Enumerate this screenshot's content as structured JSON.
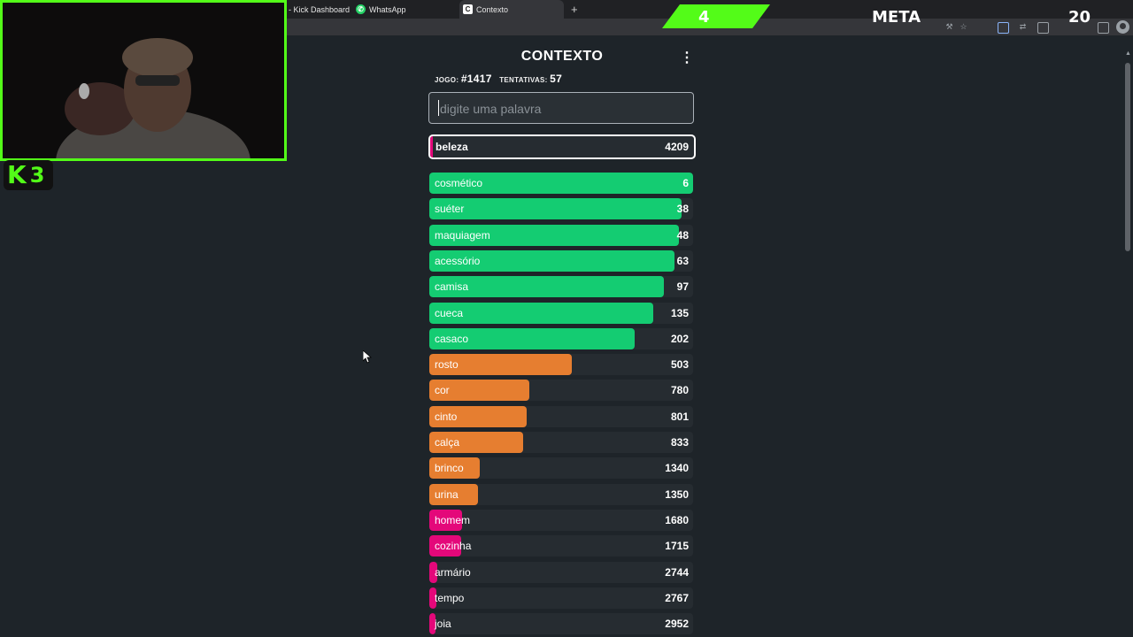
{
  "browser": {
    "tabs": [
      {
        "label": "- Kick Dashboard",
        "icon": ""
      },
      {
        "label": "WhatsApp",
        "icon": "whatsapp-icon"
      },
      {
        "label": "Contexto",
        "icon": "contexto-icon",
        "active": true
      }
    ],
    "new_tab_symbol": "+"
  },
  "overlay": {
    "kick_logo_letter": "K",
    "kick_count": "3",
    "goal_current": "4",
    "goal_label": "META",
    "goal_target": "20",
    "accent_color": "#53fc18"
  },
  "app": {
    "title": "CONTEXTO",
    "menu_symbol": "⋮",
    "game_label": "JOGO:",
    "game_number": "#1417",
    "attempts_label": "TENTATIVAS:",
    "attempts_count": "57",
    "input_placeholder": "digite uma palavra",
    "last_guess": {
      "word": "beleza",
      "rank": "4209"
    },
    "guesses": [
      {
        "word": "cosmético",
        "rank": "6",
        "fill": 1.0,
        "color": "#14cc72"
      },
      {
        "word": "suéter",
        "rank": "38",
        "fill": 0.955,
        "color": "#14cc72"
      },
      {
        "word": "maquiagem",
        "rank": "48",
        "fill": 0.945,
        "color": "#14cc72"
      },
      {
        "word": "acessório",
        "rank": "63",
        "fill": 0.93,
        "color": "#14cc72"
      },
      {
        "word": "camisa",
        "rank": "97",
        "fill": 0.89,
        "color": "#14cc72"
      },
      {
        "word": "cueca",
        "rank": "135",
        "fill": 0.85,
        "color": "#14cc72"
      },
      {
        "word": "casaco",
        "rank": "202",
        "fill": 0.78,
        "color": "#14cc72"
      },
      {
        "word": "rosto",
        "rank": "503",
        "fill": 0.54,
        "color": "#e67e30"
      },
      {
        "word": "cor",
        "rank": "780",
        "fill": 0.38,
        "color": "#e67e30"
      },
      {
        "word": "cinto",
        "rank": "801",
        "fill": 0.37,
        "color": "#e67e30"
      },
      {
        "word": "calça",
        "rank": "833",
        "fill": 0.355,
        "color": "#e67e30"
      },
      {
        "word": "brinco",
        "rank": "1340",
        "fill": 0.19,
        "color": "#e67e30"
      },
      {
        "word": "urina",
        "rank": "1350",
        "fill": 0.185,
        "color": "#e67e30"
      },
      {
        "word": "homem",
        "rank": "1680",
        "fill": 0.125,
        "color": "#e4087a"
      },
      {
        "word": "cozinha",
        "rank": "1715",
        "fill": 0.12,
        "color": "#e4087a"
      },
      {
        "word": "armário",
        "rank": "2744",
        "fill": 0.03,
        "color": "#e4087a"
      },
      {
        "word": "tempo",
        "rank": "2767",
        "fill": 0.028,
        "color": "#e4087a"
      },
      {
        "word": "joia",
        "rank": "2952",
        "fill": 0.024,
        "color": "#e4087a"
      }
    ]
  }
}
